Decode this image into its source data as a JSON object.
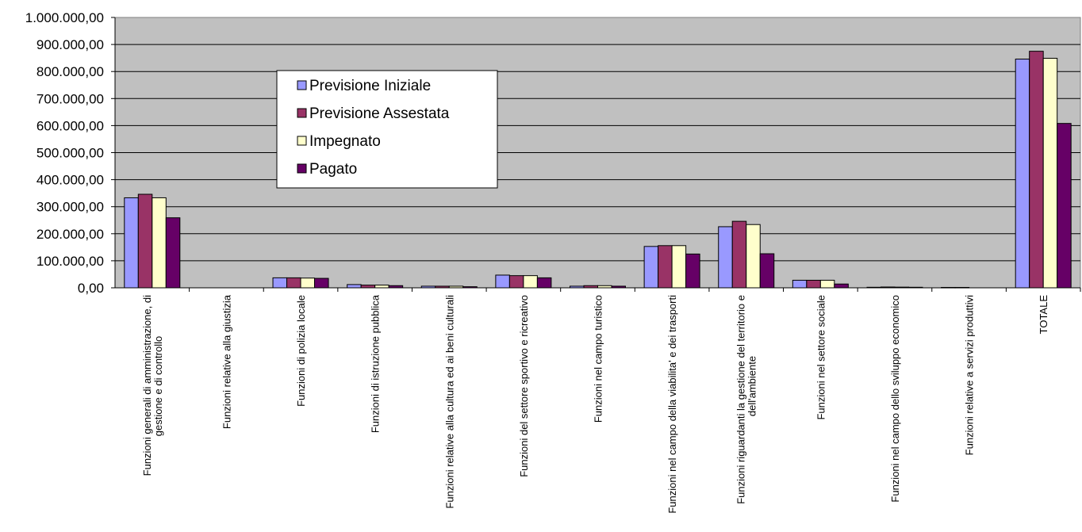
{
  "chart_data": {
    "type": "bar",
    "categories": [
      [
        "Funzioni generali di amministrazione, di",
        "gestione e di controllo"
      ],
      [
        "Funzioni relative alla giustizia"
      ],
      [
        "Funzioni di polizia locale"
      ],
      [
        "Funzioni di istruzione pubblica"
      ],
      [
        "Funzioni relative alla cultura ed ai beni culturali"
      ],
      [
        "Funzioni del settore sportivo e ricreativo"
      ],
      [
        "Funzioni nel campo turistico"
      ],
      [
        "Funzioni nel campo della viabilita' e dei trasporti"
      ],
      [
        "Funzioni riguardanti la gestione del territorio e",
        "dell'ambiente"
      ],
      [
        "Funzioni nel settore sociale"
      ],
      [
        "Funzioni nel campo dello sviluppo economico"
      ],
      [
        "Funzioni relative a servizi produttivi"
      ],
      [
        "TOTALE"
      ]
    ],
    "series": [
      {
        "name": "Previsione Iniziale",
        "color": "#9999ff",
        "values": [
          333000,
          0,
          37000,
          12000,
          6000,
          47000,
          6000,
          153000,
          226000,
          28000,
          2000,
          1500,
          846000
        ]
      },
      {
        "name": "Previsione Assestata",
        "color": "#993366",
        "values": [
          346000,
          0,
          37000,
          10000,
          6000,
          45000,
          8000,
          156000,
          246000,
          28000,
          3000,
          1500,
          875000
        ]
      },
      {
        "name": "Impegnato",
        "color": "#ffffcc",
        "values": [
          333000,
          0,
          36000,
          10000,
          6000,
          45000,
          8000,
          156000,
          234000,
          28000,
          2500,
          0,
          849000
        ]
      },
      {
        "name": "Pagato",
        "color": "#660066",
        "values": [
          259000,
          0,
          35000,
          8000,
          4000,
          37000,
          6000,
          125000,
          126000,
          14000,
          2000,
          0,
          608000
        ]
      }
    ],
    "y_ticks": [
      "0,00",
      "100.000,00",
      "200.000,00",
      "300.000,00",
      "400.000,00",
      "500.000,00",
      "600.000,00",
      "700.000,00",
      "800.000,00",
      "900.000,00",
      "1.000.000,00"
    ],
    "ylim": [
      0,
      1000000
    ],
    "y_step": 100000,
    "grid": true,
    "legend_position": "inside upper-left",
    "plot_background": "#c0c0c0"
  }
}
